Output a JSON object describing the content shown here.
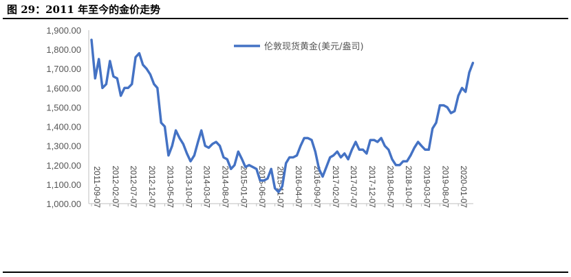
{
  "figure": {
    "title": "图 29：2011 年至今的金价走势"
  },
  "colors": {
    "series": "#4472C4",
    "axis": "#bfbfbf",
    "text": "#555555"
  },
  "chart_data": {
    "type": "line",
    "title": "",
    "xlabel": "",
    "ylabel": "",
    "ylim": [
      1000,
      1900
    ],
    "grid": false,
    "legend": "top-center",
    "y_ticks": [
      "1,000.00",
      "1,100.00",
      "1,200.00",
      "1,300.00",
      "1,400.00",
      "1,500.00",
      "1,600.00",
      "1,700.00",
      "1,800.00",
      "1,900.00"
    ],
    "x_tick_labels": [
      "2011-09-07",
      "2012-02-07",
      "2012-07-07",
      "2012-12-07",
      "2013-05-07",
      "2013-10-07",
      "2014-03-07",
      "2014-08-07",
      "2015-01-07",
      "2015-06-07",
      "2015-11-07",
      "2016-04-07",
      "2016-09-07",
      "2017-02-07",
      "2017-07-07",
      "2017-12-07",
      "2018-05-07",
      "2018-10-07",
      "2019-03-07",
      "2019-08-07",
      "2020-01-07"
    ],
    "series": [
      {
        "name": "伦敦现货黄金(美元/盎司)",
        "x": [
          "2011-09-07",
          "2011-10-07",
          "2011-11-07",
          "2011-12-07",
          "2012-01-07",
          "2012-02-07",
          "2012-03-07",
          "2012-04-07",
          "2012-05-07",
          "2012-06-07",
          "2012-07-07",
          "2012-08-07",
          "2012-09-07",
          "2012-10-07",
          "2012-11-07",
          "2012-12-07",
          "2013-01-07",
          "2013-02-07",
          "2013-03-07",
          "2013-04-07",
          "2013-05-07",
          "2013-06-07",
          "2013-07-07",
          "2013-08-07",
          "2013-09-07",
          "2013-10-07",
          "2013-11-07",
          "2013-12-07",
          "2014-01-07",
          "2014-02-07",
          "2014-03-07",
          "2014-04-07",
          "2014-05-07",
          "2014-06-07",
          "2014-07-07",
          "2014-08-07",
          "2014-09-07",
          "2014-10-07",
          "2014-11-07",
          "2014-12-07",
          "2015-01-07",
          "2015-02-07",
          "2015-03-07",
          "2015-04-07",
          "2015-05-07",
          "2015-06-07",
          "2015-07-07",
          "2015-08-07",
          "2015-09-07",
          "2015-10-07",
          "2015-11-07",
          "2015-12-07",
          "2016-01-07",
          "2016-02-07",
          "2016-03-07",
          "2016-04-07",
          "2016-05-07",
          "2016-06-07",
          "2016-07-07",
          "2016-08-07",
          "2016-09-07",
          "2016-10-07",
          "2016-11-07",
          "2016-12-07",
          "2017-01-07",
          "2017-02-07",
          "2017-03-07",
          "2017-04-07",
          "2017-05-07",
          "2017-06-07",
          "2017-07-07",
          "2017-08-07",
          "2017-09-07",
          "2017-10-07",
          "2017-11-07",
          "2017-12-07",
          "2018-01-07",
          "2018-02-07",
          "2018-03-07",
          "2018-04-07",
          "2018-05-07",
          "2018-06-07",
          "2018-07-07",
          "2018-08-07",
          "2018-09-07",
          "2018-10-07",
          "2018-11-07",
          "2018-12-07",
          "2019-01-07",
          "2019-02-07",
          "2019-03-07",
          "2019-04-07",
          "2019-05-07",
          "2019-06-07",
          "2019-07-07",
          "2019-08-07",
          "2019-09-07",
          "2019-10-07",
          "2019-11-07",
          "2019-12-07",
          "2020-01-07",
          "2020-02-07",
          "2020-03-07",
          "2020-04-07",
          "2020-05-07"
        ],
        "values": [
          1850,
          1650,
          1750,
          1600,
          1620,
          1740,
          1660,
          1650,
          1560,
          1600,
          1600,
          1620,
          1760,
          1780,
          1720,
          1700,
          1670,
          1620,
          1600,
          1420,
          1400,
          1250,
          1300,
          1380,
          1340,
          1310,
          1260,
          1220,
          1250,
          1320,
          1380,
          1300,
          1290,
          1310,
          1320,
          1300,
          1240,
          1230,
          1180,
          1200,
          1270,
          1230,
          1190,
          1200,
          1190,
          1180,
          1120,
          1120,
          1130,
          1180,
          1080,
          1060,
          1090,
          1210,
          1240,
          1240,
          1250,
          1300,
          1340,
          1340,
          1330,
          1270,
          1180,
          1140,
          1190,
          1240,
          1250,
          1270,
          1240,
          1260,
          1230,
          1280,
          1320,
          1280,
          1280,
          1260,
          1330,
          1330,
          1320,
          1340,
          1300,
          1280,
          1230,
          1200,
          1200,
          1220,
          1220,
          1250,
          1290,
          1320,
          1300,
          1280,
          1280,
          1390,
          1420,
          1510,
          1510,
          1500,
          1470,
          1480,
          1560,
          1600,
          1580,
          1680,
          1730
        ]
      }
    ]
  }
}
